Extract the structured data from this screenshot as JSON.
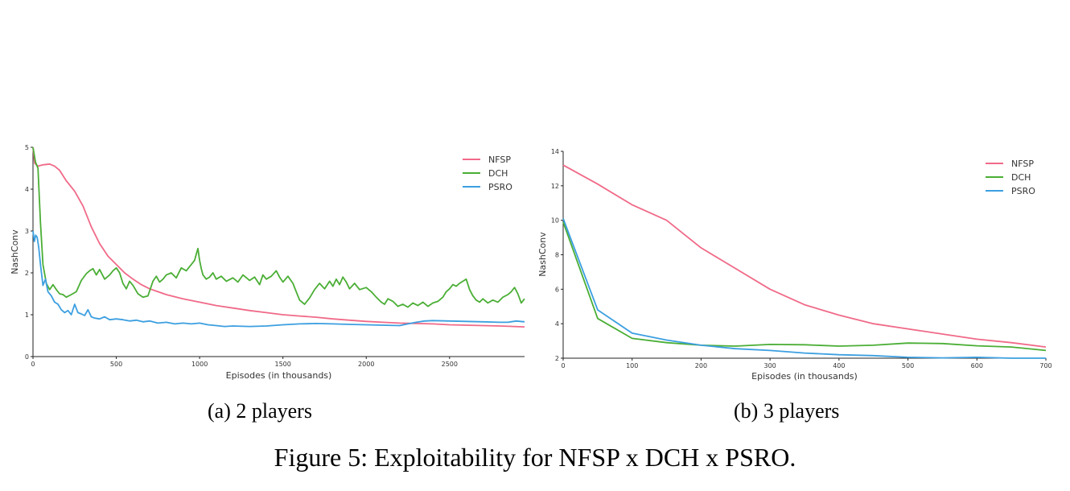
{
  "figure_caption": "Figure 5: Exploitability for NFSP x DCH x PSRO.",
  "colors": {
    "NFSP": "#f06a88",
    "DCH": "#4aae35",
    "PSRO": "#3c9fe0",
    "axis": "#222222"
  },
  "chart_data": [
    {
      "type": "line",
      "caption": "(a) 2 players",
      "xlabel": "Episodes (in thousands)",
      "ylabel": "NashConv",
      "xlim": [
        0,
        2950
      ],
      "ylim": [
        0,
        5
      ],
      "xticks": [
        0,
        500,
        1000,
        1500,
        2000,
        2500
      ],
      "yticks": [
        0,
        1,
        2,
        3,
        4,
        5
      ],
      "legend_position": "top-right",
      "series": [
        {
          "name": "NFSP",
          "x": [
            0,
            10,
            30,
            60,
            100,
            130,
            160,
            200,
            250,
            300,
            350,
            400,
            450,
            500,
            550,
            600,
            650,
            700,
            750,
            800,
            900,
            1000,
            1100,
            1200,
            1300,
            1400,
            1500,
            1600,
            1700,
            1800,
            1900,
            2000,
            2100,
            2200,
            2300,
            2400,
            2500,
            2600,
            2700,
            2800,
            2950
          ],
          "y": [
            5.0,
            4.62,
            4.55,
            4.58,
            4.6,
            4.55,
            4.45,
            4.2,
            3.95,
            3.6,
            3.1,
            2.7,
            2.4,
            2.2,
            2.0,
            1.85,
            1.72,
            1.62,
            1.55,
            1.48,
            1.38,
            1.3,
            1.22,
            1.16,
            1.1,
            1.05,
            1.0,
            0.97,
            0.94,
            0.9,
            0.87,
            0.84,
            0.82,
            0.8,
            0.79,
            0.78,
            0.76,
            0.75,
            0.74,
            0.73,
            0.71
          ]
        },
        {
          "name": "DCH",
          "x": [
            0,
            15,
            30,
            45,
            60,
            80,
            100,
            120,
            140,
            160,
            180,
            200,
            230,
            260,
            290,
            320,
            340,
            360,
            380,
            400,
            430,
            460,
            480,
            500,
            520,
            540,
            560,
            580,
            600,
            630,
            660,
            690,
            720,
            740,
            760,
            780,
            800,
            830,
            860,
            890,
            920,
            950,
            970,
            980,
            990,
            1000,
            1010,
            1020,
            1040,
            1060,
            1080,
            1100,
            1130,
            1160,
            1200,
            1230,
            1260,
            1300,
            1330,
            1360,
            1380,
            1400,
            1430,
            1460,
            1480,
            1500,
            1530,
            1560,
            1580,
            1600,
            1630,
            1660,
            1690,
            1720,
            1750,
            1780,
            1800,
            1820,
            1840,
            1860,
            1880,
            1900,
            1930,
            1960,
            2000,
            2030,
            2060,
            2090,
            2110,
            2130,
            2160,
            2190,
            2220,
            2250,
            2280,
            2310,
            2340,
            2370,
            2400,
            2430,
            2460,
            2480,
            2500,
            2520,
            2540,
            2560,
            2580,
            2600,
            2620,
            2640,
            2660,
            2680,
            2700,
            2730,
            2760,
            2790,
            2820,
            2850,
            2870,
            2890,
            2910,
            2930,
            2950
          ],
          "y": [
            5.0,
            4.65,
            4.5,
            3.2,
            2.2,
            1.75,
            1.6,
            1.72,
            1.6,
            1.5,
            1.48,
            1.42,
            1.48,
            1.55,
            1.82,
            1.98,
            2.05,
            2.1,
            1.95,
            2.08,
            1.85,
            1.95,
            2.05,
            2.12,
            2.0,
            1.75,
            1.62,
            1.8,
            1.7,
            1.5,
            1.42,
            1.45,
            1.8,
            1.92,
            1.78,
            1.85,
            1.95,
            2.0,
            1.88,
            2.12,
            2.05,
            2.2,
            2.3,
            2.45,
            2.58,
            2.3,
            2.1,
            1.95,
            1.85,
            1.9,
            2.0,
            1.85,
            1.92,
            1.8,
            1.88,
            1.78,
            1.95,
            1.82,
            1.9,
            1.72,
            1.95,
            1.85,
            1.92,
            2.05,
            1.9,
            1.78,
            1.92,
            1.75,
            1.55,
            1.35,
            1.25,
            1.4,
            1.6,
            1.75,
            1.62,
            1.8,
            1.68,
            1.85,
            1.72,
            1.9,
            1.78,
            1.62,
            1.75,
            1.6,
            1.65,
            1.55,
            1.42,
            1.3,
            1.25,
            1.38,
            1.32,
            1.2,
            1.25,
            1.18,
            1.28,
            1.22,
            1.3,
            1.2,
            1.28,
            1.32,
            1.42,
            1.55,
            1.62,
            1.72,
            1.68,
            1.75,
            1.8,
            1.85,
            1.6,
            1.45,
            1.35,
            1.3,
            1.38,
            1.28,
            1.35,
            1.3,
            1.42,
            1.48,
            1.55,
            1.65,
            1.5,
            1.28,
            1.38
          ]
        },
        {
          "name": "PSRO",
          "x": [
            0,
            8,
            16,
            25,
            35,
            45,
            60,
            75,
            90,
            110,
            130,
            150,
            170,
            190,
            210,
            230,
            250,
            270,
            290,
            310,
            330,
            350,
            370,
            400,
            430,
            460,
            500,
            540,
            580,
            620,
            660,
            700,
            750,
            800,
            850,
            900,
            950,
            1000,
            1050,
            1100,
            1150,
            1200,
            1300,
            1400,
            1500,
            1600,
            1700,
            1800,
            1900,
            2000,
            2100,
            2200,
            2250,
            2300,
            2350,
            2400,
            2500,
            2600,
            2700,
            2800,
            2850,
            2900,
            2950
          ],
          "y": [
            3.0,
            2.75,
            2.9,
            2.85,
            2.6,
            2.2,
            1.7,
            1.85,
            1.55,
            1.45,
            1.3,
            1.25,
            1.12,
            1.05,
            1.1,
            1.0,
            1.25,
            1.05,
            1.02,
            0.98,
            1.12,
            0.95,
            0.92,
            0.9,
            0.95,
            0.88,
            0.9,
            0.88,
            0.85,
            0.87,
            0.83,
            0.85,
            0.8,
            0.82,
            0.78,
            0.8,
            0.78,
            0.8,
            0.76,
            0.74,
            0.72,
            0.73,
            0.72,
            0.73,
            0.76,
            0.78,
            0.79,
            0.78,
            0.77,
            0.76,
            0.75,
            0.74,
            0.78,
            0.82,
            0.85,
            0.86,
            0.85,
            0.84,
            0.83,
            0.82,
            0.82,
            0.85,
            0.83
          ]
        }
      ]
    },
    {
      "type": "line",
      "caption": "(b) 3 players",
      "xlabel": "Episodes (in thousands)",
      "ylabel": "NashConv",
      "xlim": [
        0,
        700
      ],
      "ylim": [
        2,
        14
      ],
      "xticks": [
        0,
        100,
        200,
        300,
        400,
        500,
        600,
        700
      ],
      "yticks": [
        2,
        4,
        6,
        8,
        10,
        12,
        14
      ],
      "legend_position": "top-right",
      "series": [
        {
          "name": "NFSP",
          "x": [
            0,
            50,
            100,
            150,
            200,
            250,
            300,
            350,
            400,
            450,
            500,
            550,
            600,
            650,
            700
          ],
          "y": [
            13.2,
            12.1,
            10.9,
            10.0,
            8.4,
            7.2,
            6.0,
            5.1,
            4.5,
            4.0,
            3.7,
            3.4,
            3.1,
            2.9,
            2.65
          ]
        },
        {
          "name": "DCH",
          "x": [
            0,
            50,
            100,
            150,
            200,
            250,
            300,
            350,
            400,
            450,
            500,
            550,
            600,
            650,
            700
          ],
          "y": [
            9.9,
            4.3,
            3.15,
            2.9,
            2.75,
            2.7,
            2.8,
            2.78,
            2.7,
            2.75,
            2.88,
            2.85,
            2.72,
            2.65,
            2.45
          ]
        },
        {
          "name": "PSRO",
          "x": [
            0,
            50,
            100,
            150,
            200,
            250,
            300,
            350,
            400,
            450,
            500,
            550,
            600,
            650,
            700
          ],
          "y": [
            10.1,
            4.8,
            3.45,
            3.05,
            2.75,
            2.55,
            2.45,
            2.3,
            2.2,
            2.15,
            2.05,
            2.02,
            2.05,
            2.0,
            2.0
          ]
        }
      ]
    }
  ]
}
